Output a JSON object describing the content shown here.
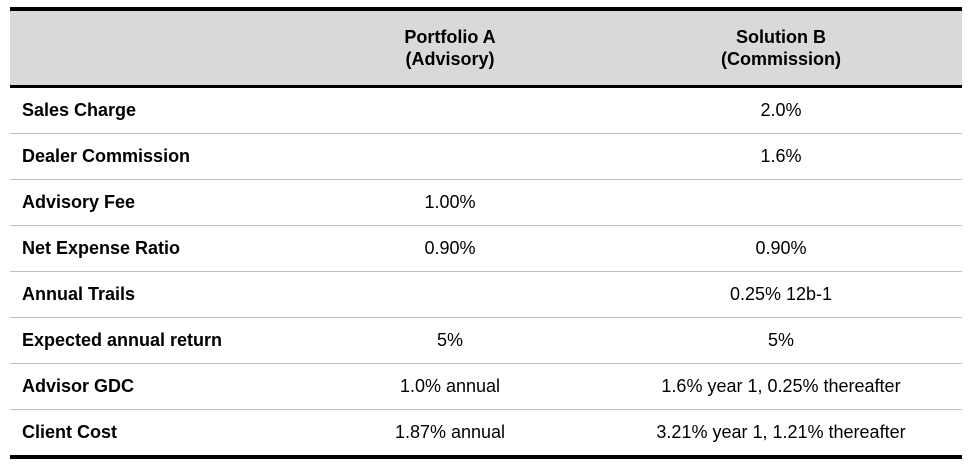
{
  "header": {
    "label_col": "",
    "portfolio_a": {
      "line1": "Portfolio A",
      "line2": "(Advisory)"
    },
    "solution_b": {
      "line1": "Solution B",
      "line2": "(Commission)"
    }
  },
  "rows": [
    {
      "label": "Sales Charge",
      "a": "",
      "b": "2.0%"
    },
    {
      "label": "Dealer Commission",
      "a": "",
      "b": "1.6%"
    },
    {
      "label": "Advisory Fee",
      "a": "1.00%",
      "b": ""
    },
    {
      "label": "Net Expense Ratio",
      "a": "0.90%",
      "b": "0.90%"
    },
    {
      "label": "Annual Trails",
      "a": "",
      "b": "0.25% 12b-1"
    },
    {
      "label": "Expected annual return",
      "a": "5%",
      "b": "5%"
    },
    {
      "label": "Advisor GDC",
      "a": "1.0% annual",
      "b": "1.6% year 1, 0.25% thereafter"
    },
    {
      "label": "Client Cost",
      "a": "1.87% annual",
      "b": "3.21% year 1, 1.21% thereafter"
    }
  ]
}
